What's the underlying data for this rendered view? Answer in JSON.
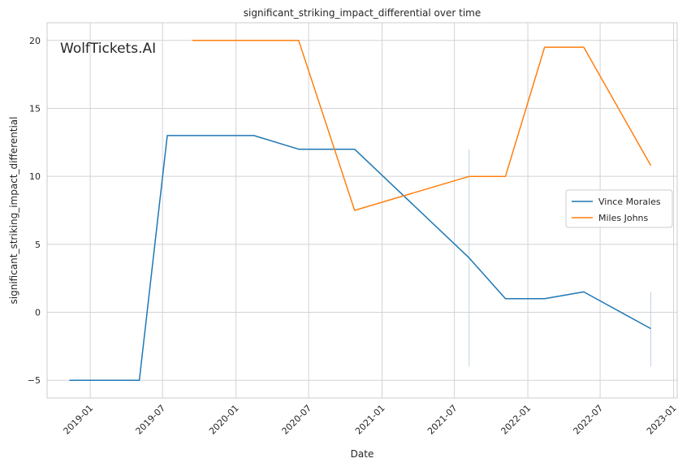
{
  "watermark": "WolfTickets.AI",
  "colors": {
    "vince": "#1f77b4",
    "miles": "#ff7f0e",
    "grid": "#d3d3d8",
    "axes_edge": "#cccccc",
    "watermark": "#c8c8c8"
  },
  "chart_data": {
    "type": "line",
    "title": "significant_striking_impact_differential over time",
    "xlabel": "Date",
    "ylabel": "significant_striking_impact_differential",
    "xlim": [
      "2018-09-15",
      "2023-01-10"
    ],
    "ylim": [
      -6.3,
      21.3
    ],
    "x_ticks": [
      "2019-01-01",
      "2019-07-01",
      "2020-01-01",
      "2020-07-01",
      "2021-01-01",
      "2021-07-01",
      "2022-01-01",
      "2022-07-01",
      "2023-01-01"
    ],
    "x_tick_labels": [
      "2019-01",
      "2019-07",
      "2020-01",
      "2020-07",
      "2021-01",
      "2021-07",
      "2022-01",
      "2022-07",
      "2023-01"
    ],
    "y_ticks": [
      -5,
      0,
      5,
      10,
      15,
      20
    ],
    "y_tick_labels": [
      "−5",
      "0",
      "5",
      "10",
      "15",
      "20"
    ],
    "grid": true,
    "legend_position": "center-right",
    "series": [
      {
        "name": "Vince Morales",
        "color": "#1f77b4",
        "points": [
          {
            "x": "2018-11-10",
            "y": -5
          },
          {
            "x": "2019-05-04",
            "y": -5
          },
          {
            "x": "2019-07-13",
            "y": 13
          },
          {
            "x": "2020-02-15",
            "y": 13
          },
          {
            "x": "2020-06-06",
            "y": 12
          },
          {
            "x": "2020-10-24",
            "y": 12
          },
          {
            "x": "2021-08-07",
            "y": 4
          },
          {
            "x": "2021-11-06",
            "y": 1
          },
          {
            "x": "2022-02-12",
            "y": 1
          },
          {
            "x": "2022-05-21",
            "y": 1.5
          },
          {
            "x": "2022-11-05",
            "y": -1.2
          }
        ]
      },
      {
        "name": "Miles Johns",
        "color": "#ff7f0e",
        "points": [
          {
            "x": "2019-09-14",
            "y": 20
          },
          {
            "x": "2020-06-06",
            "y": 20
          },
          {
            "x": "2020-10-24",
            "y": 7.5
          },
          {
            "x": "2021-08-07",
            "y": 10
          },
          {
            "x": "2021-11-06",
            "y": 10
          },
          {
            "x": "2022-02-12",
            "y": 19.5
          },
          {
            "x": "2022-05-21",
            "y": 19.5
          },
          {
            "x": "2022-11-05",
            "y": 10.8
          }
        ]
      }
    ],
    "markers": [
      {
        "x": "2021-08-07",
        "y_from": -4,
        "y_to": 12
      },
      {
        "x": "2022-11-05",
        "y_from": -4,
        "y_to": 1.5
      }
    ]
  }
}
